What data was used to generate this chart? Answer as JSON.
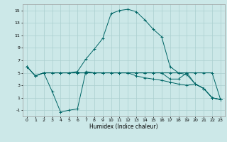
{
  "xlabel": "Humidex (Indice chaleur)",
  "bg_color": "#cce8e8",
  "grid_color": "#aacfcf",
  "line_color": "#006666",
  "xlim": [
    -0.5,
    23.5
  ],
  "ylim": [
    -2,
    16
  ],
  "xticks": [
    0,
    1,
    2,
    3,
    4,
    5,
    6,
    7,
    8,
    9,
    10,
    11,
    12,
    13,
    14,
    15,
    16,
    17,
    18,
    19,
    20,
    21,
    22,
    23
  ],
  "yticks": [
    -1,
    1,
    3,
    5,
    7,
    9,
    11,
    13,
    15
  ],
  "line1_y": [
    6,
    4.5,
    5,
    5,
    5,
    5,
    5,
    5,
    5,
    5,
    5,
    5,
    5,
    5,
    5,
    5,
    5,
    5,
    5,
    5,
    5,
    5,
    5,
    0.7
  ],
  "line2_y": [
    6,
    4.5,
    5,
    2,
    -1.3,
    -1.0,
    -0.8,
    5.2,
    5,
    5,
    5,
    5,
    5,
    5,
    5,
    5,
    5,
    4,
    4,
    5,
    3.2,
    2.5,
    1,
    0.7
  ],
  "line3_y": [
    6,
    4.5,
    5,
    5,
    5,
    5.0,
    5.2,
    7.2,
    8.8,
    10.5,
    14.5,
    15,
    15.2,
    14.8,
    13.5,
    12,
    10.8,
    6,
    5.0,
    4.7,
    3.2,
    2.5,
    1,
    0.7
  ],
  "line4_x": [
    2,
    3,
    4,
    5,
    6,
    7,
    8,
    9,
    10,
    11,
    12,
    13,
    14,
    15,
    16,
    17,
    18,
    19,
    20,
    21,
    22,
    23
  ],
  "line4_y": [
    5,
    5,
    5,
    5,
    5,
    5,
    5,
    5,
    5,
    5,
    5,
    4.5,
    4.2,
    4.0,
    3.8,
    3.5,
    3.2,
    3.0,
    3.2,
    2.5,
    1,
    0.7
  ]
}
